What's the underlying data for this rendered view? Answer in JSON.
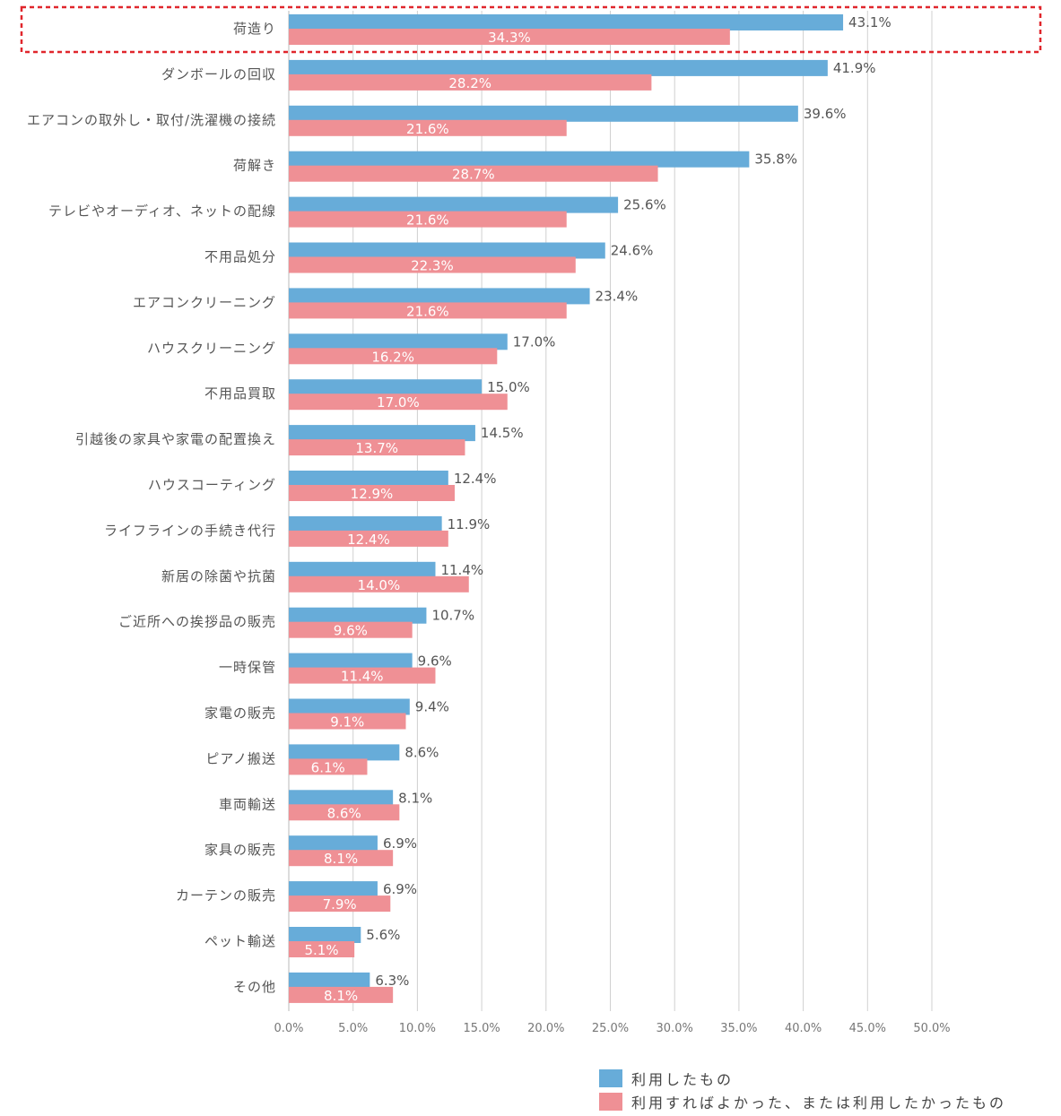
{
  "chart_data": {
    "type": "bar",
    "orientation": "horizontal",
    "categories": [
      "荷造り",
      "ダンボールの回収",
      "エアコンの取外し・取付/洗濯機の接続",
      "荷解き",
      "テレビやオーディオ、ネットの配線",
      "不用品処分",
      "エアコンクリーニング",
      "ハウスクリーニング",
      "不用品買取",
      "引越後の家具や家電の配置換え",
      "ハウスコーティング",
      "ライフラインの手続き代行",
      "新居の除菌や抗菌",
      "ご近所への挨拶品の販売",
      "一時保管",
      "家電の販売",
      "ピアノ搬送",
      "車両輸送",
      "家具の販売",
      "カーテンの販売",
      "ペット輸送",
      "その他"
    ],
    "series": [
      {
        "name": "利用したもの",
        "color": "#67acd9",
        "values": [
          43.1,
          41.9,
          39.6,
          35.8,
          25.6,
          24.6,
          23.4,
          17.0,
          15.0,
          14.5,
          12.4,
          11.9,
          11.4,
          10.7,
          9.6,
          9.4,
          8.6,
          8.1,
          6.9,
          6.9,
          5.6,
          6.3
        ],
        "labels": [
          "43.1%",
          "41.9%",
          "39.6%",
          "35.8%",
          "25.6%",
          "24.6%",
          "23.4%",
          "17.0%",
          "15.0%",
          "14.5%",
          "12.4%",
          "11.9%",
          "11.4%",
          "10.7%",
          "9.6%",
          "9.4%",
          "8.6%",
          "8.1%",
          "6.9%",
          "6.9%",
          "5.6%",
          "6.3%"
        ]
      },
      {
        "name": "利用すればよかった、または利用したかったもの",
        "color": "#ef9095",
        "values": [
          34.3,
          28.2,
          21.6,
          28.7,
          21.6,
          22.3,
          21.6,
          16.2,
          17.0,
          13.7,
          12.9,
          12.4,
          14.0,
          9.6,
          11.4,
          9.1,
          6.1,
          8.6,
          8.1,
          7.9,
          5.1,
          8.1
        ],
        "labels": [
          "34.3%",
          "28.2%",
          "21.6%",
          "28.7%",
          "21.6%",
          "22.3%",
          "21.6%",
          "16.2%",
          "17.0%",
          "13.7%",
          "12.9%",
          "12.4%",
          "14.0%",
          "9.6%",
          "11.4%",
          "9.1%",
          "6.1%",
          "8.6%",
          "8.1%",
          "7.9%",
          "5.1%",
          "8.1%"
        ]
      }
    ],
    "x_ticks": [
      "0.0%",
      "5.0%",
      "10.0%",
      "15.0%",
      "20.0%",
      "25.0%",
      "30.0%",
      "35.0%",
      "40.0%",
      "45.0%",
      "50.0%"
    ],
    "xlim": [
      0,
      50
    ],
    "grid": true,
    "highlight": {
      "category": "荷造り",
      "style": "red dashed box"
    },
    "legend_position": "bottom-right",
    "gridline_color": "#d0d0d0",
    "highlight_color": "#e0262c"
  }
}
